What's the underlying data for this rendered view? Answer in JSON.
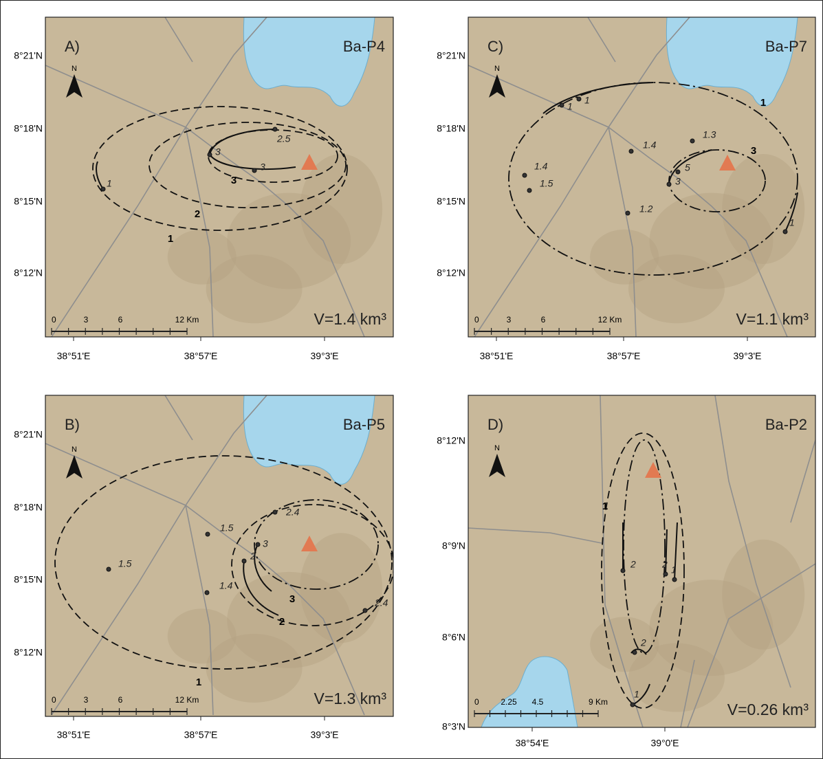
{
  "panels": [
    {
      "label": "A)",
      "sample": "Ba-P4",
      "volume": "V=1.4 km³",
      "north": "N",
      "lat_labels": [
        "8°21'N",
        "8°18'N",
        "8°15'N",
        "8°12'N"
      ],
      "lon_labels": [
        "38°51'E",
        "38°57'E",
        "39°3'E"
      ],
      "scale_labels": [
        "0",
        "3",
        "6",
        "12 Km"
      ],
      "isopach_labels": [
        "1",
        "2",
        "3"
      ],
      "point_labels": [
        "1",
        "3",
        "2.5",
        "3"
      ]
    },
    {
      "label": "B)",
      "sample": "Ba-P5",
      "volume": "V=1.3 km³",
      "north": "N",
      "lat_labels": [
        "8°21'N",
        "8°18'N",
        "8°15'N",
        "8°12'N"
      ],
      "lon_labels": [
        "38°51'E",
        "38°57'E",
        "39°3'E"
      ],
      "scale_labels": [
        "0",
        "3",
        "6",
        "12 Km"
      ],
      "isopach_labels": [
        "1",
        "2",
        "3"
      ],
      "point_labels": [
        "1.5",
        "1.5",
        "1.4",
        "2.4",
        "2",
        "3",
        "2.4"
      ]
    },
    {
      "label": "C)",
      "sample": "Ba-P7",
      "volume": "V=1.1 km³",
      "north": "N",
      "lat_labels": [
        "8°21'N",
        "8°18'N",
        "8°15'N",
        "8°12'N"
      ],
      "lon_labels": [
        "38°51'E",
        "38°57'E",
        "39°3'E"
      ],
      "scale_labels": [
        "0",
        "3",
        "6",
        "12 Km"
      ],
      "isopach_labels": [
        "1",
        "3"
      ],
      "point_labels": [
        "1",
        "1",
        "1.4",
        "1.3",
        "1.4",
        "1.5",
        "1.2",
        "5",
        "3",
        "1"
      ]
    },
    {
      "label": "D)",
      "sample": "Ba-P2",
      "volume": "V=0.26 km³",
      "north": "N",
      "lat_labels": [
        "8°12'N",
        "8°9'N",
        "8°6'N",
        "8°3'N"
      ],
      "lon_labels": [
        "38°54'E",
        "39°0'E"
      ],
      "scale_labels": [
        "0",
        "2.25",
        "4.5",
        "9 Km"
      ],
      "isopach_labels": [
        "1"
      ],
      "point_labels": [
        "2",
        "2",
        "1",
        "2",
        "1"
      ]
    }
  ]
}
